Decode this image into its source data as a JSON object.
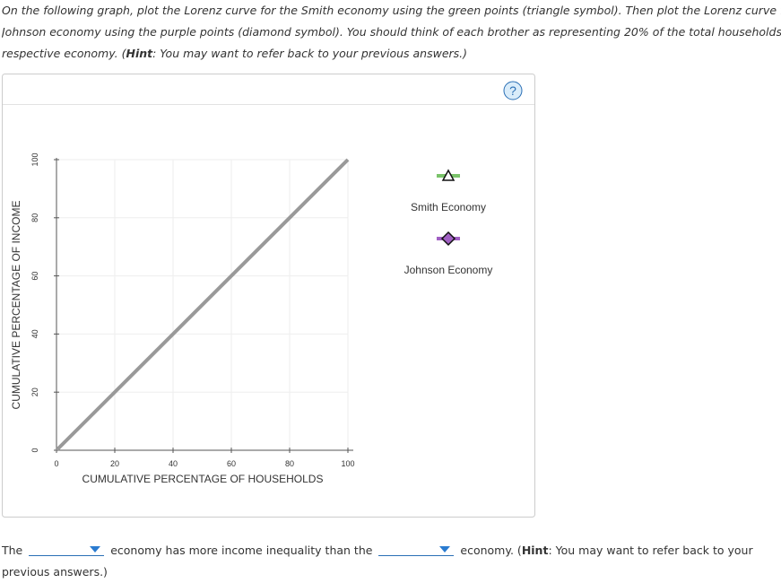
{
  "instructions": {
    "line1": "On the following graph, plot the Lorenz curve for the Smith economy using the green points (triangle symbol). Then plot the Lorenz curve for th",
    "line2": "Johnson economy using the purple points (diamond symbol). You should think of each brother as representing 20% of the total households in h",
    "line3_pre": "respective economy. (",
    "line3_hint": "Hint",
    "line3_post": ": You may want to refer back to your previous answers.)"
  },
  "help_icon": "?",
  "chart_data": {
    "type": "line",
    "x_label": "CUMULATIVE PERCENTAGE OF HOUSEHOLDS",
    "y_label": "CUMULATIVE PERCENTAGE OF INCOME",
    "x": [
      0,
      100
    ],
    "series": [
      {
        "color": "#999999",
        "values": [
          0,
          100
        ]
      }
    ],
    "xlim": [
      0,
      100
    ],
    "ylim": [
      0,
      100
    ],
    "xticks": [
      0,
      20,
      40,
      60,
      80,
      100
    ],
    "yticks": [
      0,
      20,
      40,
      60,
      80,
      100
    ],
    "grid": true
  },
  "tools": [
    {
      "label": "Smith Economy",
      "color": "#7ac36a",
      "symbol": "triangle"
    },
    {
      "label": "Johnson Economy",
      "color": "#a160c4",
      "symbol": "diamond"
    }
  ],
  "question": {
    "part1": "The",
    "part2": "economy has more income inequality than the",
    "part3": "economy. (",
    "hint": "Hint",
    "part4": ": You may want to refer back to your previous answers.)"
  }
}
